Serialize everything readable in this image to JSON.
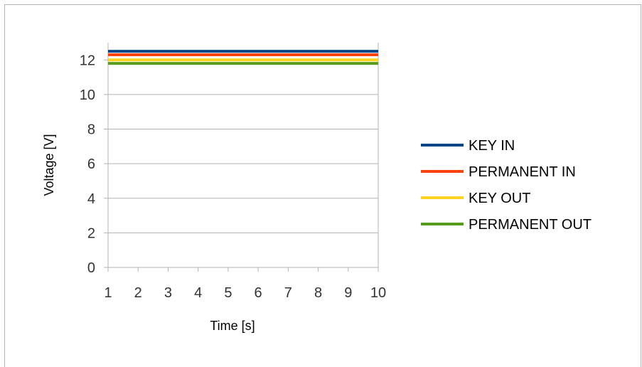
{
  "chart_data": {
    "type": "line",
    "xlabel": "Time [s]",
    "ylabel": "Voltage [V]",
    "x": [
      1,
      2,
      3,
      4,
      5,
      6,
      7,
      8,
      9,
      10
    ],
    "xlim": [
      1,
      10
    ],
    "ylim": [
      0,
      13
    ],
    "yticks": [
      0,
      2,
      4,
      6,
      8,
      10,
      12
    ],
    "grid": "horizontal",
    "legend_position": "right",
    "series": [
      {
        "name": "KEY IN",
        "color": "#004586",
        "values": [
          12.5,
          12.5,
          12.5,
          12.5,
          12.5,
          12.5,
          12.5,
          12.5,
          12.5,
          12.5
        ]
      },
      {
        "name": "PERMANENT IN",
        "color": "#ff420e",
        "values": [
          12.3,
          12.3,
          12.3,
          12.3,
          12.3,
          12.3,
          12.3,
          12.3,
          12.3,
          12.3
        ]
      },
      {
        "name": "KEY OUT",
        "color": "#ffd320",
        "values": [
          12.0,
          12.0,
          12.0,
          12.0,
          12.0,
          12.0,
          12.0,
          12.0,
          12.0,
          12.0
        ]
      },
      {
        "name": "PERMANENT OUT",
        "color": "#579d1c",
        "values": [
          11.8,
          11.8,
          11.8,
          11.8,
          11.8,
          11.8,
          11.8,
          11.8,
          11.8,
          11.8
        ]
      }
    ]
  }
}
